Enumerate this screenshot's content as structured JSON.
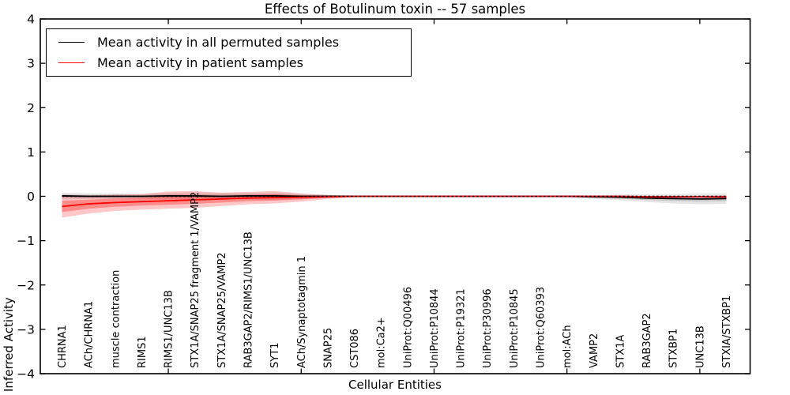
{
  "figure": {
    "title": "Effects of Botulinum toxin -- 57 samples",
    "xlabel": "Cellular Entities",
    "ylabel": "Inferred Activity"
  },
  "legend": {
    "items": [
      {
        "label": "Mean activity in all permuted samples",
        "color": "#000000"
      },
      {
        "label": "Mean activity in patient samples",
        "color": "#ff0000"
      }
    ]
  },
  "chart_data": {
    "type": "line",
    "title": "Effects of Botulinum toxin -- 57 samples",
    "xlabel": "Cellular Entities",
    "ylabel": "Inferred Activity",
    "ylim": [
      -4,
      4
    ],
    "yticks": [
      -4,
      -3,
      -2,
      -1,
      0,
      1,
      2,
      3,
      4
    ],
    "xticks_numeric": [
      5,
      10,
      15,
      20,
      25
    ],
    "grid": false,
    "legend_position": "upper left",
    "zero_line": {
      "y": 0,
      "style": "dotted",
      "color": "#000000"
    },
    "categories": [
      "CHRNA1",
      "ACh/CHRNA1",
      "muscle contraction",
      "RIMS1",
      "RIMS1/UNC13B",
      "STX1A/SNAP25 fragment 1/VAMP2",
      "STX1A/SNAP25/VAMP2",
      "RAB3GAP2/RIMS1/UNC13B",
      "SYT1",
      "ACh/Synaptotagmin 1",
      "SNAP25",
      "CST086",
      "mol:Ca2+",
      "UniProt:Q00496",
      "UniProt:P10844",
      "UniProt:P19321",
      "UniProt:P30996",
      "UniProt:P10845",
      "UniProt:Q60393",
      "mol:ACh",
      "VAMP2",
      "STX1A",
      "RAB3GAP2",
      "STXBP1",
      "UNC13B",
      "STXIA/STXBP1"
    ],
    "series": [
      {
        "name": "Mean activity in all permuted samples",
        "color": "#000000",
        "band_color_outer": "rgba(0,0,0,0.10)",
        "band_color_inner": "rgba(0,0,0,0.13)",
        "values": [
          0.01,
          0.0,
          0.0,
          0.0,
          0.01,
          0.01,
          0.0,
          0.01,
          0.01,
          0.0,
          0.0,
          0.0,
          0.0,
          0.0,
          0.0,
          0.0,
          0.0,
          0.0,
          0.0,
          0.0,
          -0.01,
          -0.02,
          -0.04,
          -0.05,
          -0.06,
          -0.05
        ],
        "band_hi": [
          0.08,
          0.07,
          0.07,
          0.06,
          0.08,
          0.09,
          0.08,
          0.08,
          0.09,
          0.06,
          0.04,
          0.02,
          0.01,
          0.01,
          0.01,
          0.01,
          0.01,
          0.01,
          0.01,
          0.02,
          0.03,
          0.04,
          0.05,
          0.05,
          0.06,
          0.06
        ],
        "band_lo": [
          -0.07,
          -0.06,
          -0.06,
          -0.06,
          -0.07,
          -0.08,
          -0.07,
          -0.07,
          -0.08,
          -0.06,
          -0.04,
          -0.02,
          -0.01,
          -0.01,
          -0.01,
          -0.01,
          -0.01,
          -0.01,
          -0.01,
          -0.03,
          -0.06,
          -0.09,
          -0.13,
          -0.16,
          -0.18,
          -0.17
        ]
      },
      {
        "name": "Mean activity in patient samples",
        "color": "#ff0000",
        "band_color_outer": "rgba(255,0,0,0.22)",
        "band_color_inner": "rgba(255,0,0,0.30)",
        "values": [
          -0.23,
          -0.17,
          -0.14,
          -0.12,
          -0.1,
          -0.08,
          -0.06,
          -0.04,
          -0.03,
          -0.02,
          -0.01,
          0.0,
          0.0,
          0.0,
          0.0,
          0.0,
          0.0,
          0.0,
          0.0,
          0.0,
          0.0,
          0.0,
          -0.01,
          -0.01,
          -0.01,
          -0.01
        ],
        "band_hi": [
          0.03,
          0.02,
          0.04,
          0.05,
          0.11,
          0.12,
          0.08,
          0.1,
          0.12,
          0.06,
          0.03,
          0.01,
          0.01,
          0.0,
          0.0,
          0.0,
          0.0,
          0.0,
          0.0,
          0.01,
          0.01,
          0.01,
          0.01,
          0.01,
          0.01,
          0.02
        ],
        "band_lo": [
          -0.48,
          -0.39,
          -0.33,
          -0.3,
          -0.28,
          -0.26,
          -0.22,
          -0.18,
          -0.16,
          -0.12,
          -0.06,
          -0.02,
          -0.01,
          0.0,
          0.0,
          0.0,
          0.0,
          0.0,
          0.0,
          -0.01,
          -0.01,
          -0.02,
          -0.02,
          -0.03,
          -0.03,
          -0.04
        ]
      }
    ]
  }
}
